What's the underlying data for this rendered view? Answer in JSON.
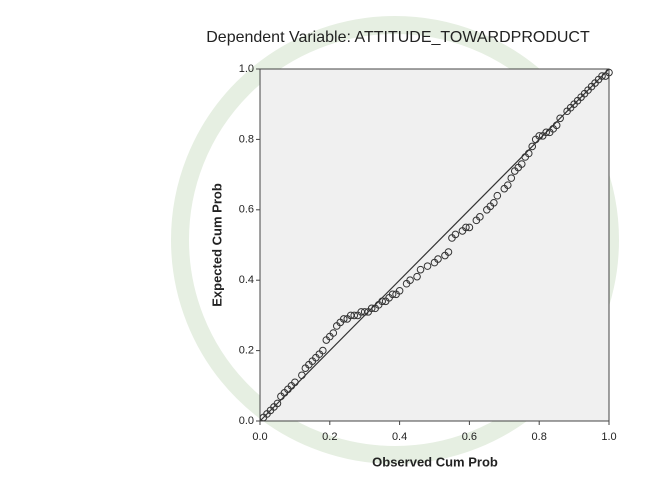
{
  "chart_data": {
    "type": "scatter",
    "title": "Dependent Variable: ATTITUDE_TOWARDPRODUCT",
    "x_label": "Observed Cum Prob",
    "y_label": "Expected Cum Prob",
    "xlim": [
      0,
      1
    ],
    "ylim": [
      0,
      1
    ],
    "xticks": [
      {
        "value": 0,
        "label": "0.0"
      },
      {
        "value": 0.2,
        "label": "0.2"
      },
      {
        "value": 0.4,
        "label": "0.4"
      },
      {
        "value": 0.6,
        "label": "0.6"
      },
      {
        "value": 0.8,
        "label": "0.8"
      },
      {
        "value": 1,
        "label": "1.0"
      }
    ],
    "yticks": [
      {
        "value": 0,
        "label": "0.0"
      },
      {
        "value": 0.2,
        "label": "0.2"
      },
      {
        "value": 0.4,
        "label": "0.4"
      },
      {
        "value": 0.6,
        "label": "0.6"
      },
      {
        "value": 0.8,
        "label": "0.8"
      },
      {
        "value": 1,
        "label": "1.0"
      }
    ],
    "color": "#333333",
    "x": [
      0.01,
      0.02,
      0.03,
      0.04,
      0.05,
      0.06,
      0.07,
      0.08,
      0.09,
      0.1,
      0.12,
      0.13,
      0.14,
      0.15,
      0.16,
      0.17,
      0.18,
      0.19,
      0.2,
      0.21,
      0.22,
      0.23,
      0.24,
      0.25,
      0.26,
      0.27,
      0.28,
      0.29,
      0.3,
      0.31,
      0.32,
      0.33,
      0.34,
      0.35,
      0.36,
      0.37,
      0.38,
      0.39,
      0.4,
      0.42,
      0.43,
      0.45,
      0.46,
      0.48,
      0.5,
      0.51,
      0.53,
      0.54,
      0.55,
      0.56,
      0.58,
      0.59,
      0.6,
      0.62,
      0.63,
      0.65,
      0.66,
      0.67,
      0.68,
      0.7,
      0.71,
      0.72,
      0.73,
      0.74,
      0.75,
      0.76,
      0.77,
      0.78,
      0.79,
      0.8,
      0.81,
      0.82,
      0.83,
      0.84,
      0.85,
      0.86,
      0.88,
      0.89,
      0.9,
      0.91,
      0.92,
      0.93,
      0.94,
      0.95,
      0.96,
      0.97,
      0.98,
      0.99,
      1.0
    ],
    "values": [
      0.01,
      0.02,
      0.03,
      0.04,
      0.05,
      0.07,
      0.08,
      0.09,
      0.1,
      0.11,
      0.13,
      0.15,
      0.16,
      0.17,
      0.18,
      0.19,
      0.2,
      0.23,
      0.24,
      0.25,
      0.27,
      0.28,
      0.29,
      0.29,
      0.3,
      0.3,
      0.3,
      0.31,
      0.31,
      0.31,
      0.32,
      0.32,
      0.33,
      0.34,
      0.34,
      0.35,
      0.36,
      0.36,
      0.37,
      0.39,
      0.4,
      0.41,
      0.43,
      0.44,
      0.45,
      0.46,
      0.47,
      0.48,
      0.52,
      0.53,
      0.54,
      0.55,
      0.55,
      0.57,
      0.58,
      0.6,
      0.61,
      0.62,
      0.64,
      0.66,
      0.67,
      0.69,
      0.71,
      0.72,
      0.73,
      0.75,
      0.76,
      0.78,
      0.8,
      0.81,
      0.81,
      0.82,
      0.82,
      0.83,
      0.84,
      0.86,
      0.88,
      0.89,
      0.9,
      0.91,
      0.92,
      0.93,
      0.94,
      0.95,
      0.96,
      0.97,
      0.98,
      0.98,
      0.99
    ]
  }
}
